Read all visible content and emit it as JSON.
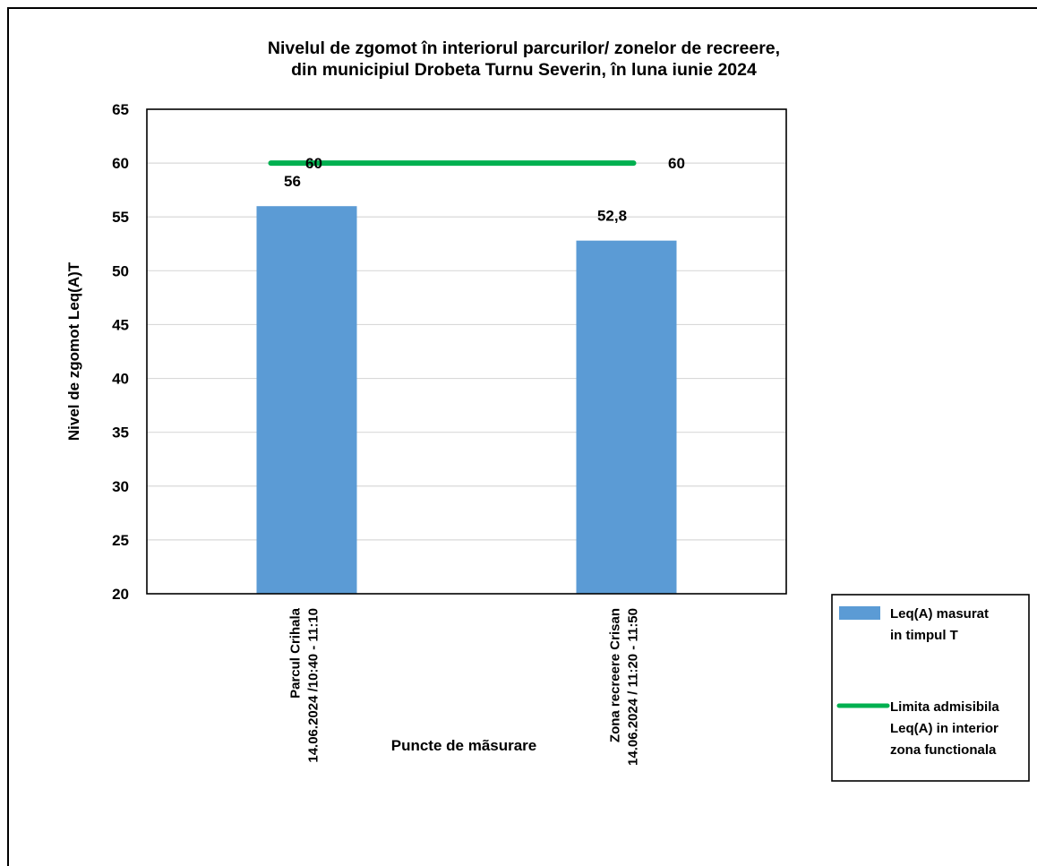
{
  "chart_data": {
    "type": "bar",
    "title_lines": [
      "Nivelul de zgomot în interiorul parcurilor/ zonelor de recreere,",
      "din municipiul Drobeta Turnu Severin, în luna iunie 2024"
    ],
    "categories": [
      [
        "Parcul Crihala",
        "14.06.2024 /10:40 - 11:10"
      ],
      [
        "Zona recreere Crisan",
        "14.06.2024 / 11:20 - 11:50"
      ]
    ],
    "series": [
      {
        "name_lines": [
          "Leq(A) masurat",
          "in timpul T"
        ],
        "type": "bar",
        "color": "#5B9BD5",
        "values": [
          56,
          52.8
        ],
        "labels": [
          "56",
          "52,8"
        ]
      },
      {
        "name_lines": [
          "Limita admisibila",
          "Leq(A) in interior",
          "zona functionala"
        ],
        "type": "line",
        "color": "#00B050",
        "values": [
          60,
          60
        ],
        "labels": [
          "60",
          "60"
        ]
      }
    ],
    "xlabel": "Puncte de mãsurare",
    "ylabel": "Nivel de zgomot Leq(A)T",
    "ylim": [
      20,
      65
    ],
    "yticks": [
      20,
      25,
      30,
      35,
      40,
      45,
      50,
      55,
      60,
      65
    ],
    "grid": true,
    "legend_position": "right"
  }
}
